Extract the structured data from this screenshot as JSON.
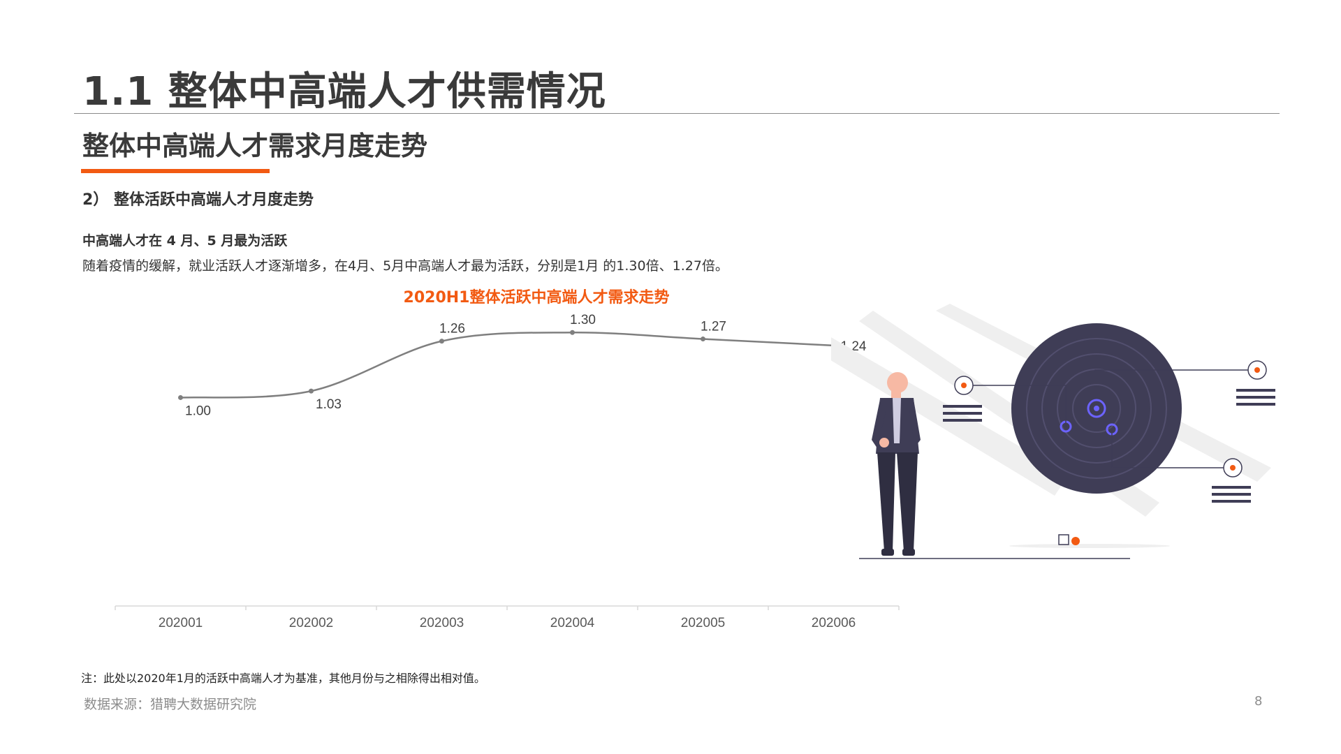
{
  "header": {
    "title": "1.1 整体中高端人才供需情况",
    "section_title": "整体中高端人才需求月度走势",
    "subsection": "2）  整体活跃中高端人才月度走势"
  },
  "content": {
    "highlight": "中高端人才在 4 月、5 月最为活跃",
    "description": "随着疫情的缓解，就业活跃人才逐渐增多，在4月、5月中高端人才最为活跃，分别是1月 的1.30倍、1.27倍。"
  },
  "chart_data": {
    "type": "line",
    "title": "2020H1整体活跃中高端人才需求走势",
    "categories": [
      "202001",
      "202002",
      "202003",
      "202004",
      "202005",
      "202006"
    ],
    "values": [
      1.0,
      1.03,
      1.26,
      1.3,
      1.27,
      1.24
    ],
    "value_labels": [
      "1.00",
      "1.03",
      "1.26",
      "1.30",
      "1.27",
      "1.24"
    ],
    "xlabel": "",
    "ylabel": "",
    "ylim": [
      0.95,
      1.32
    ],
    "grid": false,
    "line_color": "#7f7f7f",
    "title_color": "#f25a12"
  },
  "footer": {
    "note": "注：此处以2020年1月的活跃中高端人才为基准，其他月份与之相除得出相对值。",
    "source": "数据来源：猎聘大数据研究院",
    "page_number": "8"
  },
  "colors": {
    "accent": "#f25a12",
    "dark_figure": "#3f3d56",
    "text_dark": "#3a3a3a",
    "muted": "#8c8c8c"
  },
  "illustration": {
    "icon": "person-with-radar-target-illustration"
  }
}
